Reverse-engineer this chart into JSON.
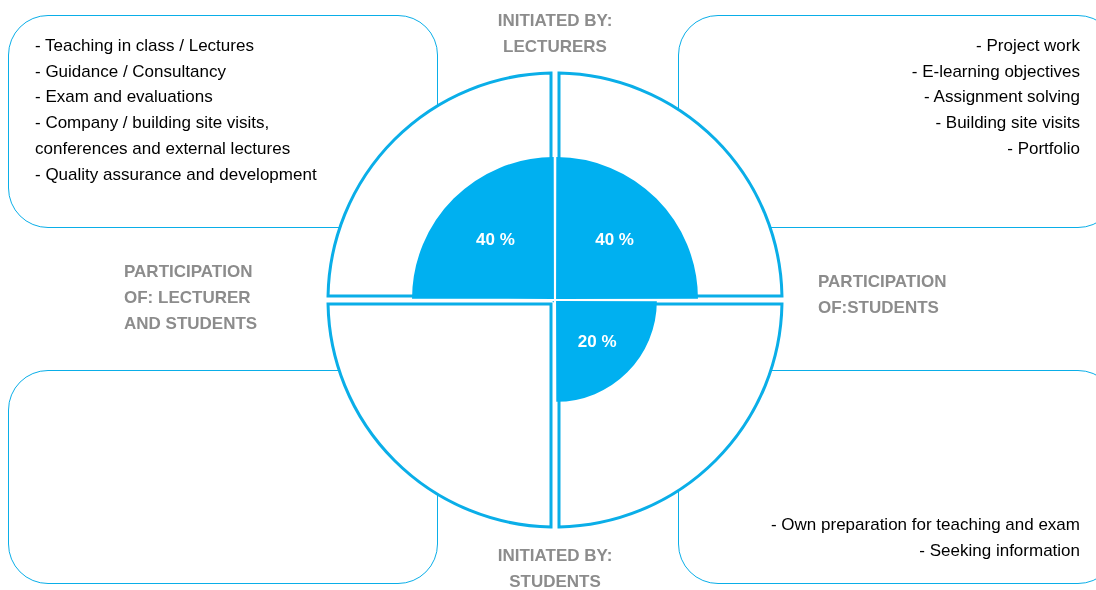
{
  "chart_data": {
    "type": "other",
    "categories": [
      null,
      null,
      null,
      null
    ],
    "values": [
      40,
      40,
      20,
      null
    ],
    "value_labels": [
      "40 %",
      "40 %",
      "20 %",
      null
    ],
    "color": "#00b0f0",
    "annotations": [
      "INITIATED BY:\nLECTURERS",
      "PARTICIPATION\nOF:STUDENTS",
      "INITIATED BY:\nSTUDENTS",
      "PARTICIPATION\nOF: LECTURER\nAND STUDENTS",
      "- Teaching in class / Lectures\n- Guidance / Consultancy\n- Exam and evaluations\n- Company / building site visits,\nconferences and external lectures\n- Quality assurance and development",
      "- Project work\n- E-learning objectives\n- Assignment solving\n- Building site visits\n- Portfolio",
      "- Own preparation for teaching and exam\n- Seeking information"
    ]
  }
}
